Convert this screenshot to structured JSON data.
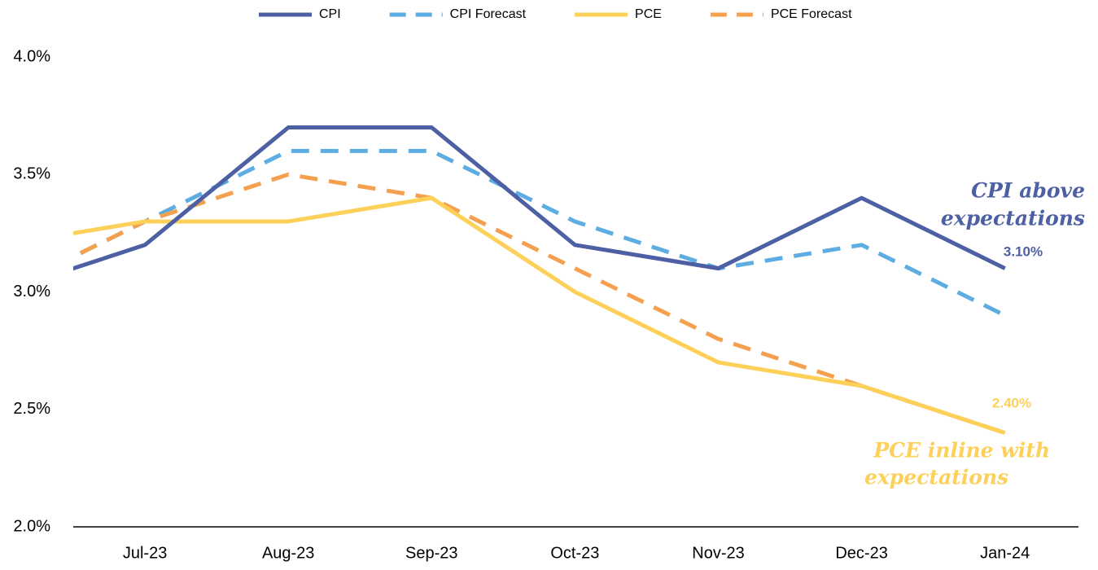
{
  "chart_data": {
    "type": "line",
    "categories": [
      null,
      "Jul-23",
      "Aug-23",
      "Sep-23",
      "Oct-23",
      "Nov-23",
      "Dec-23",
      "Jan-24"
    ],
    "series": [
      {
        "name": "CPI",
        "color": "#4c60a3",
        "dashed": false,
        "values": [
          3.0,
          3.2,
          3.7,
          3.7,
          3.2,
          3.1,
          3.4,
          3.1
        ],
        "value_labels": [
          null,
          null,
          null,
          null,
          null,
          null,
          null,
          "3.10%"
        ]
      },
      {
        "name": "CPI Forecast",
        "color": "#5dade2",
        "dashed": true,
        "values": [
          3.0,
          3.3,
          3.6,
          3.6,
          3.3,
          3.1,
          3.2,
          2.9
        ]
      },
      {
        "name": "PCE",
        "color": "#fdd05a",
        "dashed": false,
        "values": [
          3.2,
          3.3,
          3.3,
          3.4,
          3.0,
          2.7,
          2.6,
          2.4
        ],
        "value_labels": [
          null,
          null,
          null,
          null,
          null,
          null,
          null,
          "2.40%"
        ]
      },
      {
        "name": "PCE Forecast",
        "color": "#f4a04f",
        "dashed": true,
        "values": [
          3.0,
          3.3,
          3.5,
          3.4,
          3.1,
          2.8,
          2.6,
          2.4
        ]
      }
    ],
    "annotations": [
      [
        "CPI above",
        "expectations"
      ],
      [
        "PCE inline with",
        "expectations"
      ]
    ],
    "ylim": [
      2.0,
      4.0
    ],
    "yticks": [
      {
        "value": 2.0,
        "label": "2.0%"
      },
      {
        "value": 2.5,
        "label": "2.5%"
      },
      {
        "value": 3.0,
        "label": "3.0%"
      },
      {
        "value": 3.5,
        "label": "3.5%"
      },
      {
        "value": 4.0,
        "label": "4.0%"
      }
    ],
    "grid": false,
    "legend": "top"
  }
}
